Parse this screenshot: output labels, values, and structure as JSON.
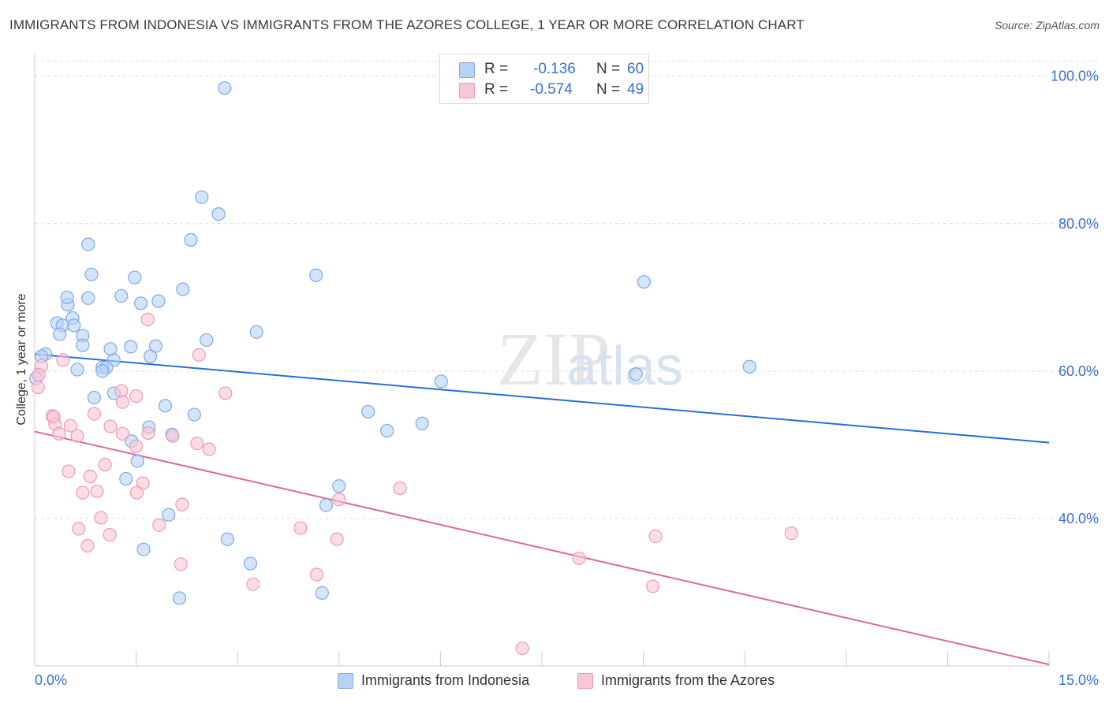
{
  "title": "IMMIGRANTS FROM INDONESIA VS IMMIGRANTS FROM THE AZORES COLLEGE, 1 YEAR OR MORE CORRELATION CHART",
  "source": "Source: ZipAtlas.com",
  "watermark": {
    "zip": "ZIP",
    "atlas": "atlas"
  },
  "legend": {
    "rows": [
      {
        "r_label": "R =",
        "r_value": "-0.136",
        "n_label": "N =",
        "n_value": "60"
      },
      {
        "r_label": "R =",
        "r_value": "-0.574",
        "n_label": "N =",
        "n_value": "49"
      }
    ]
  },
  "colors": {
    "blue_fill": "#b8d2f5",
    "blue_stroke": "#7fa9e6",
    "blue_line": "#2a6fd4",
    "pink_fill": "#f9c6d6",
    "pink_stroke": "#f09ab6",
    "pink_line": "#e0669a",
    "axis_label": "#3a6fd0",
    "grid": "#dddddd"
  },
  "chart_data": {
    "type": "scatter",
    "title": "IMMIGRANTS FROM INDONESIA VS IMMIGRANTS FROM THE AZORES COLLEGE, 1 YEAR OR MORE CORRELATION CHART",
    "ylabel": "College, 1 year or more",
    "xlim": [
      0,
      15
    ],
    "ylim": [
      20,
      102
    ],
    "x_tick_labels": [
      "0.0%",
      "15.0%"
    ],
    "y_ticks": [
      40,
      60,
      80,
      100
    ],
    "y_tick_labels": [
      "40.0%",
      "60.0%",
      "80.0%",
      "100.0%"
    ],
    "grid": true,
    "legend_position": "top-center",
    "series": [
      {
        "name": "Immigrants from Indonesia",
        "color": "#b8d2f5",
        "trend": {
          "x": [
            0,
            15
          ],
          "y": [
            62.3,
            50.3
          ]
        },
        "points": [
          [
            2.81,
            98.4
          ],
          [
            2.47,
            83.6
          ],
          [
            2.72,
            81.3
          ],
          [
            0.79,
            77.2
          ],
          [
            2.31,
            77.8
          ],
          [
            0.84,
            73.1
          ],
          [
            1.48,
            72.7
          ],
          [
            4.16,
            73.0
          ],
          [
            1.28,
            70.2
          ],
          [
            2.19,
            71.1
          ],
          [
            9.01,
            72.1
          ],
          [
            0.79,
            69.9
          ],
          [
            0.49,
            69.0
          ],
          [
            0.48,
            70.0
          ],
          [
            1.57,
            69.2
          ],
          [
            1.83,
            69.5
          ],
          [
            0.33,
            66.5
          ],
          [
            0.56,
            67.2
          ],
          [
            0.41,
            66.2
          ],
          [
            0.58,
            66.2
          ],
          [
            0.37,
            65.0
          ],
          [
            0.71,
            64.8
          ],
          [
            2.54,
            64.2
          ],
          [
            3.28,
            65.3
          ],
          [
            0.16,
            62.3
          ],
          [
            0.1,
            62.0
          ],
          [
            0.71,
            63.5
          ],
          [
            1.42,
            63.3
          ],
          [
            1.79,
            63.4
          ],
          [
            1.12,
            63.0
          ],
          [
            1.71,
            62.0
          ],
          [
            1.17,
            61.5
          ],
          [
            0.63,
            60.2
          ],
          [
            1.0,
            60.5
          ],
          [
            1.06,
            60.5
          ],
          [
            1.0,
            60.0
          ],
          [
            10.57,
            60.6
          ],
          [
            8.89,
            59.6
          ],
          [
            6.01,
            58.6
          ],
          [
            0.02,
            59.0
          ],
          [
            1.17,
            57.0
          ],
          [
            0.88,
            56.4
          ],
          [
            1.93,
            55.3
          ],
          [
            2.36,
            54.1
          ],
          [
            4.93,
            54.5
          ],
          [
            5.73,
            52.9
          ],
          [
            1.69,
            52.4
          ],
          [
            5.21,
            51.9
          ],
          [
            2.03,
            51.4
          ],
          [
            1.43,
            50.5
          ],
          [
            1.52,
            47.8
          ],
          [
            1.35,
            45.4
          ],
          [
            4.5,
            44.4
          ],
          [
            4.31,
            41.8
          ],
          [
            1.98,
            40.5
          ],
          [
            2.85,
            37.2
          ],
          [
            1.61,
            35.8
          ],
          [
            3.19,
            33.9
          ],
          [
            4.25,
            29.9
          ],
          [
            2.14,
            29.2
          ]
        ]
      },
      {
        "name": "Immigrants from the Azores",
        "color": "#f9c6d6",
        "trend": {
          "x": [
            0,
            15
          ],
          "y": [
            51.8,
            20.2
          ]
        },
        "points": [
          [
            0.1,
            60.7
          ],
          [
            0.42,
            61.5
          ],
          [
            0.05,
            57.8
          ],
          [
            1.67,
            67.0
          ],
          [
            2.43,
            62.2
          ],
          [
            2.82,
            57.0
          ],
          [
            1.28,
            57.3
          ],
          [
            1.5,
            56.6
          ],
          [
            1.3,
            55.8
          ],
          [
            0.26,
            53.9
          ],
          [
            0.88,
            54.2
          ],
          [
            0.3,
            52.8
          ],
          [
            0.53,
            52.6
          ],
          [
            0.36,
            51.5
          ],
          [
            1.3,
            51.5
          ],
          [
            1.68,
            51.6
          ],
          [
            2.04,
            51.2
          ],
          [
            0.63,
            51.2
          ],
          [
            2.4,
            50.2
          ],
          [
            2.58,
            49.4
          ],
          [
            1.5,
            49.8
          ],
          [
            0.28,
            53.8
          ],
          [
            1.04,
            47.3
          ],
          [
            0.5,
            46.4
          ],
          [
            0.82,
            45.7
          ],
          [
            1.6,
            44.8
          ],
          [
            0.71,
            43.5
          ],
          [
            0.92,
            43.7
          ],
          [
            1.51,
            43.5
          ],
          [
            5.4,
            44.1
          ],
          [
            2.18,
            41.9
          ],
          [
            4.5,
            42.6
          ],
          [
            0.98,
            40.1
          ],
          [
            0.65,
            38.6
          ],
          [
            1.84,
            39.1
          ],
          [
            3.93,
            38.7
          ],
          [
            1.11,
            37.8
          ],
          [
            4.47,
            37.2
          ],
          [
            9.18,
            37.6
          ],
          [
            11.19,
            38.0
          ],
          [
            0.78,
            36.3
          ],
          [
            8.05,
            34.6
          ],
          [
            2.16,
            33.8
          ],
          [
            4.17,
            32.4
          ],
          [
            3.23,
            31.1
          ],
          [
            9.14,
            30.8
          ],
          [
            7.21,
            22.4
          ],
          [
            0.06,
            59.5
          ],
          [
            1.12,
            52.5
          ]
        ]
      }
    ]
  },
  "bottom_legend": {
    "items": [
      {
        "label": "Immigrants from Indonesia"
      },
      {
        "label": "Immigrants from the Azores"
      }
    ]
  }
}
